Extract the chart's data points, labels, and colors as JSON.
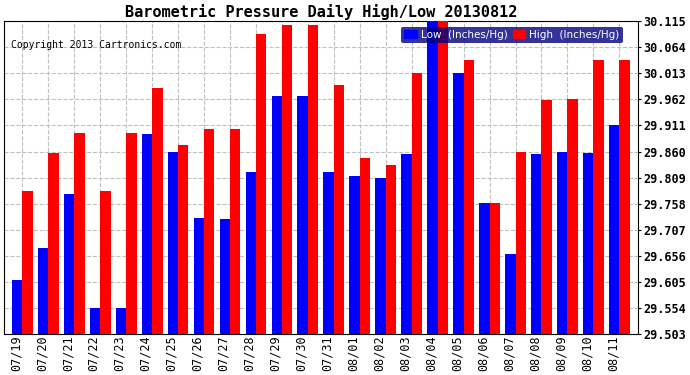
{
  "title": "Barometric Pressure Daily High/Low 20130812",
  "copyright": "Copyright 2013 Cartronics.com",
  "legend_low": "Low  (Inches/Hg)",
  "legend_high": "High  (Inches/Hg)",
  "dates": [
    "07/19",
    "07/20",
    "07/21",
    "07/22",
    "07/23",
    "07/24",
    "07/25",
    "07/26",
    "07/27",
    "07/28",
    "07/29",
    "07/30",
    "07/31",
    "08/01",
    "08/02",
    "08/03",
    "08/04",
    "08/05",
    "08/06",
    "08/07",
    "08/08",
    "08/09",
    "08/10",
    "08/11"
  ],
  "low": [
    29.609,
    29.671,
    29.776,
    29.554,
    29.554,
    29.895,
    29.86,
    29.73,
    29.727,
    29.82,
    29.968,
    29.968,
    29.82,
    29.812,
    29.808,
    29.855,
    30.12,
    30.013,
    29.76,
    29.66,
    29.855,
    29.86,
    29.858,
    29.911
  ],
  "high": [
    29.782,
    29.858,
    29.897,
    29.782,
    29.897,
    29.985,
    29.873,
    29.905,
    29.905,
    30.09,
    30.107,
    30.107,
    29.99,
    29.848,
    29.833,
    30.013,
    30.12,
    30.04,
    29.76,
    29.86,
    29.96,
    29.962,
    30.04,
    30.04
  ],
  "ylim_min": 29.503,
  "ylim_max": 30.115,
  "yticks": [
    29.503,
    29.554,
    29.605,
    29.656,
    29.707,
    29.758,
    29.809,
    29.86,
    29.911,
    29.962,
    30.013,
    30.064,
    30.115
  ],
  "bar_width": 0.4,
  "low_color": "#0000FF",
  "high_color": "#FF0000",
  "bg_color": "#FFFFFF",
  "grid_color": "#C0C0C0",
  "title_fontsize": 11,
  "axis_fontsize": 8.5
}
